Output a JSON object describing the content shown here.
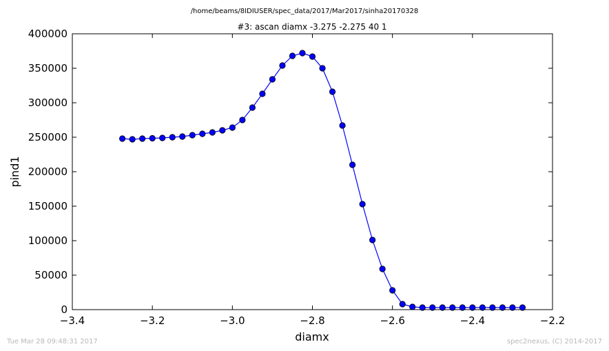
{
  "chart_data": {
    "type": "line",
    "supertitle": "/home/beams/8IDIUSER/spec_data/2017/Mar2017/sinha20170328",
    "title": "#3: ascan  diamx -3.275 -2.275  40 1",
    "xlabel": "diamx",
    "ylabel": "pind1",
    "xlim": [
      -3.4,
      -2.2
    ],
    "ylim": [
      0,
      400000
    ],
    "xticks": [
      -3.4,
      -3.2,
      -3.0,
      -2.8,
      -2.6,
      -2.4,
      -2.2
    ],
    "xtick_labels": [
      "−3.4",
      "−3.2",
      "−3.0",
      "−2.8",
      "−2.6",
      "−2.4",
      "−2.2"
    ],
    "yticks": [
      0,
      50000,
      100000,
      150000,
      200000,
      250000,
      300000,
      350000,
      400000
    ],
    "ytick_labels": [
      "0",
      "50000",
      "100000",
      "150000",
      "200000",
      "250000",
      "300000",
      "350000",
      "400000"
    ],
    "grid": false,
    "colors": {
      "line": "#0000ff",
      "marker": "#0000ff",
      "marker_edge": "#000000"
    },
    "series": [
      {
        "x": [
          -3.275,
          -3.25,
          -3.225,
          -3.2,
          -3.175,
          -3.15,
          -3.125,
          -3.1,
          -3.075,
          -3.05,
          -3.025,
          -3.0,
          -2.975,
          -2.95,
          -2.925,
          -2.9,
          -2.875,
          -2.85,
          -2.825,
          -2.8,
          -2.775,
          -2.75,
          -2.725,
          -2.7,
          -2.675,
          -2.65,
          -2.625,
          -2.6,
          -2.575,
          -2.55,
          -2.525,
          -2.5,
          -2.475,
          -2.45,
          -2.425,
          -2.4,
          -2.375,
          -2.35,
          -2.325,
          -2.3,
          -2.275
        ],
        "y": [
          248000,
          247000,
          248000,
          248500,
          249000,
          250000,
          251000,
          253000,
          255000,
          257000,
          260000,
          264000,
          275000,
          293000,
          313000,
          334000,
          354000,
          368000,
          372000,
          367000,
          350000,
          316000,
          267000,
          210000,
          153000,
          101000,
          59000,
          28000,
          8000,
          4000,
          3000,
          3000,
          3000,
          3000,
          3000,
          3000,
          3000,
          3000,
          3000,
          3000,
          3000
        ]
      }
    ]
  },
  "footer": {
    "timestamp": "Tue Mar 28 09:48:31 2017",
    "credit": "spec2nexus, (C) 2014-2017"
  }
}
